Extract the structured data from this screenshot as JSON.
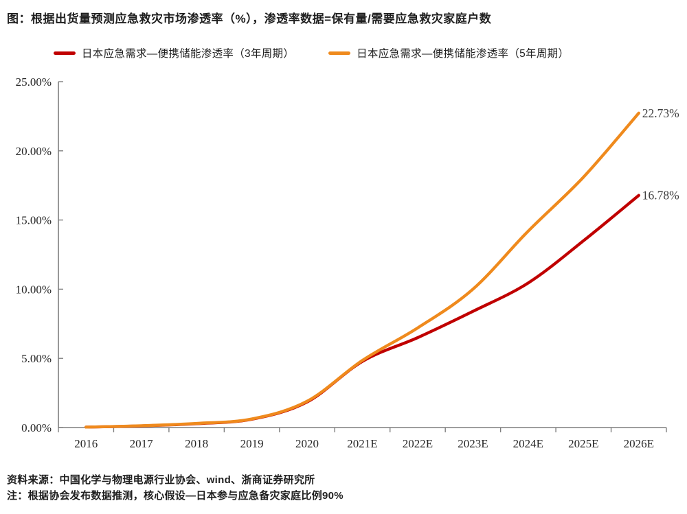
{
  "header": {
    "title": "图：根据出货量预测应急救灾市场渗透率（%），渗透率数据=保有量/需要应急救灾家庭户数"
  },
  "legend": {
    "items": [
      {
        "label": "日本应急需求—便携储能渗透率（3年周期）",
        "color": "#c00000"
      },
      {
        "label": "日本应急需求—便携储能渗透率（5年周期）",
        "color": "#ef8a1d"
      }
    ]
  },
  "footer": {
    "source": "资料来源：中国化学与物理电源行业协会、wind、浙商证券研究所",
    "note": "注：根据协会发布数据推测，核心假设—日本参与应急备灾家庭比例90%"
  },
  "chart_data": {
    "type": "line",
    "title": "根据出货量预测应急救灾市场渗透率（%）",
    "categories": [
      "2016",
      "2017",
      "2018",
      "2019",
      "2020",
      "2021E",
      "2022E",
      "2023E",
      "2024E",
      "2025E",
      "2026E"
    ],
    "series": [
      {
        "name": "日本应急需求—便携储能渗透率（3年周期）",
        "color": "#c00000",
        "values": [
          0.03,
          0.12,
          0.28,
          0.6,
          1.85,
          4.78,
          6.5,
          8.4,
          10.45,
          13.5,
          16.78
        ],
        "end_label": "16.78%"
      },
      {
        "name": "日本应急需求—便携储能渗透率（5年周期）",
        "color": "#ef8a1d",
        "values": [
          0.03,
          0.13,
          0.3,
          0.62,
          1.9,
          4.85,
          7.2,
          10.0,
          14.2,
          18.1,
          22.73
        ],
        "end_label": "22.73%"
      }
    ],
    "xlabel": "",
    "ylabel": "",
    "ylim": [
      0,
      25
    ],
    "ytick_step": 5,
    "ytick_labels": [
      "0.00%",
      "5.00%",
      "10.00%",
      "15.00%",
      "20.00%",
      "25.00%"
    ],
    "grid": false,
    "legend_position": "top",
    "axis_color": "#7f7f7f",
    "tick_label_color": "#262626"
  }
}
